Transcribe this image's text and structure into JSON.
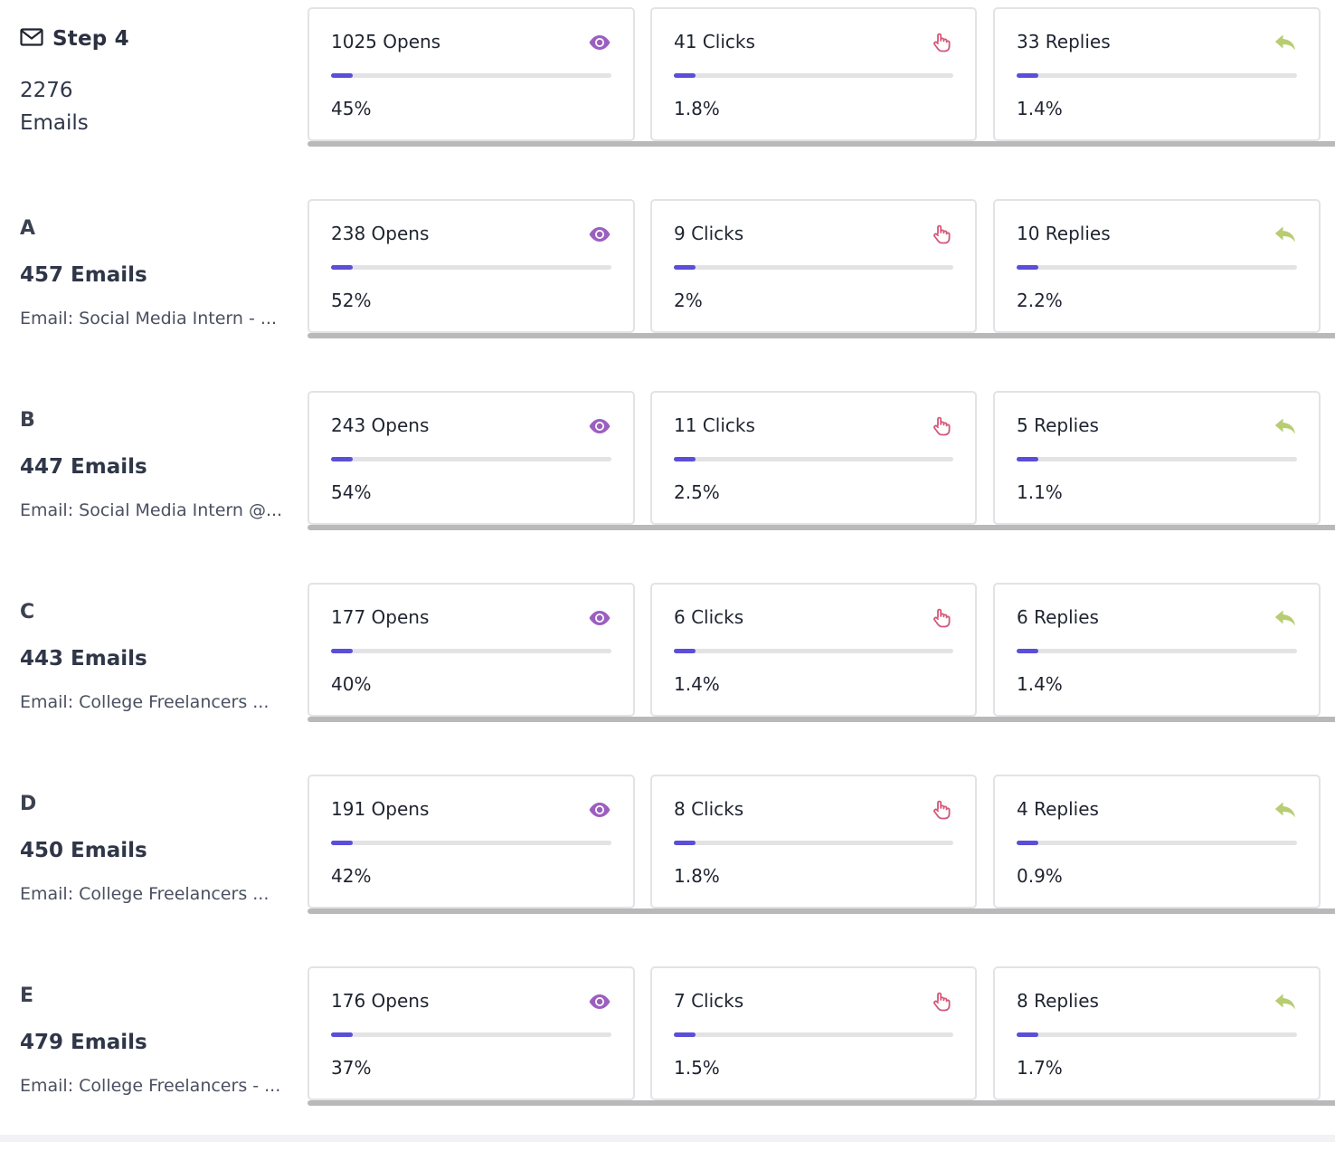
{
  "colors": {
    "accent_fill": "#5b4ed8",
    "opens_icon": "#9b5fc0",
    "clicks_icon": "#d45878",
    "replies_icon": "#b8cc72"
  },
  "icons": {
    "step": "envelope-icon",
    "opens": "eye-icon",
    "clicks": "pointer-hand-icon",
    "replies": "reply-icon"
  },
  "step": {
    "title": "Step 4",
    "emails": "2276 Emails",
    "opens": {
      "label": "1025 Opens",
      "pct": "45%",
      "progress": 0.078
    },
    "clicks": {
      "label": "41 Clicks",
      "pct": "1.8%",
      "progress": 0.078
    },
    "replies": {
      "label": "33 Replies",
      "pct": "1.4%",
      "progress": 0.078
    }
  },
  "variants": [
    {
      "letter": "A",
      "emails": "457 Emails",
      "subject": "Email: Social Media Intern - ...",
      "opens": {
        "label": "238 Opens",
        "pct": "52%",
        "progress": 0.078
      },
      "clicks": {
        "label": "9 Clicks",
        "pct": "2%",
        "progress": 0.078
      },
      "replies": {
        "label": "10 Replies",
        "pct": "2.2%",
        "progress": 0.078
      }
    },
    {
      "letter": "B",
      "emails": "447 Emails",
      "subject": "Email: Social Media Intern @...",
      "opens": {
        "label": "243 Opens",
        "pct": "54%",
        "progress": 0.078
      },
      "clicks": {
        "label": "11 Clicks",
        "pct": "2.5%",
        "progress": 0.078
      },
      "replies": {
        "label": "5 Replies",
        "pct": "1.1%",
        "progress": 0.078
      }
    },
    {
      "letter": "C",
      "emails": "443 Emails",
      "subject": "Email: College Freelancers ...",
      "opens": {
        "label": "177 Opens",
        "pct": "40%",
        "progress": 0.078
      },
      "clicks": {
        "label": "6 Clicks",
        "pct": "1.4%",
        "progress": 0.078
      },
      "replies": {
        "label": "6 Replies",
        "pct": "1.4%",
        "progress": 0.078
      }
    },
    {
      "letter": "D",
      "emails": "450 Emails",
      "subject": "Email: College Freelancers ...",
      "opens": {
        "label": "191 Opens",
        "pct": "42%",
        "progress": 0.078
      },
      "clicks": {
        "label": "8 Clicks",
        "pct": "1.8%",
        "progress": 0.078
      },
      "replies": {
        "label": "4 Replies",
        "pct": "0.9%",
        "progress": 0.078
      }
    },
    {
      "letter": "E",
      "emails": "479 Emails",
      "subject": "Email: College Freelancers - ...",
      "opens": {
        "label": "176 Opens",
        "pct": "37%",
        "progress": 0.078
      },
      "clicks": {
        "label": "7 Clicks",
        "pct": "1.5%",
        "progress": 0.078
      },
      "replies": {
        "label": "8 Replies",
        "pct": "1.7%",
        "progress": 0.078
      }
    }
  ]
}
